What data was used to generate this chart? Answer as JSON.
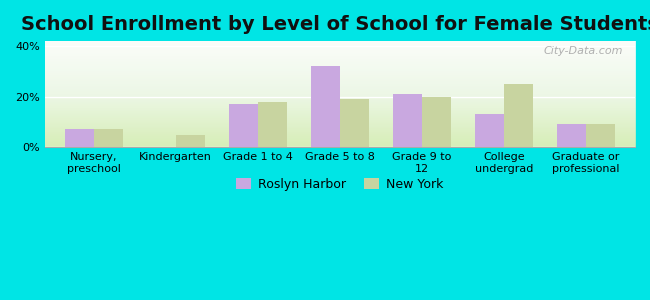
{
  "title": "School Enrollment by Level of School for Female Students",
  "categories": [
    "Nursery,\npreschool",
    "Kindergarten",
    "Grade 1 to 4",
    "Grade 5 to 8",
    "Grade 9 to\n12",
    "College\nundergrad",
    "Graduate or\nprofessional"
  ],
  "roslyn_harbor": [
    7,
    0,
    17,
    32,
    21,
    13,
    9
  ],
  "new_york": [
    7,
    5,
    18,
    19,
    20,
    25,
    9
  ],
  "roslyn_color": "#c9a8e0",
  "ny_color": "#c8d4a0",
  "background_color": "#00e5e5",
  "ylim": [
    0,
    42
  ],
  "yticks": [
    0,
    20,
    40
  ],
  "ytick_labels": [
    "0%",
    "20%",
    "40%"
  ],
  "legend_roslyn": "Roslyn Harbor",
  "legend_ny": "New York",
  "bar_width": 0.35,
  "title_fontsize": 14,
  "tick_fontsize": 8,
  "legend_fontsize": 9
}
